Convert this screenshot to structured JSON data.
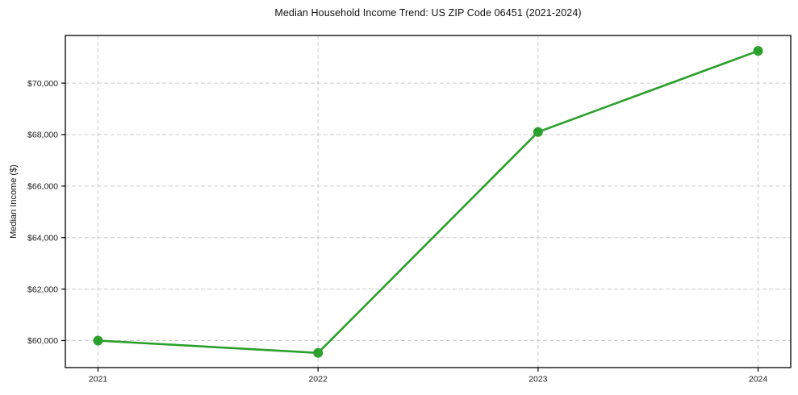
{
  "chart_data": {
    "type": "line",
    "title": "Median Household Income Trend: US ZIP Code 06451 (2021-2024)",
    "xlabel": "",
    "ylabel": "Median Income ($)",
    "categories": [
      "2021",
      "2022",
      "2023",
      "2024"
    ],
    "series": [
      {
        "name": "Median Household Income",
        "values": [
          60000,
          59520,
          68100,
          71250
        ]
      }
    ],
    "ylim": [
      58950,
      71850
    ],
    "yticks": [
      60000,
      62000,
      64000,
      66000,
      68000,
      70000
    ],
    "ytick_labels": [
      "$60,000",
      "$62,000",
      "$64,000",
      "$66,000",
      "$68,000",
      "$70,000"
    ],
    "grid": true,
    "grid_style": "dashed",
    "legend_position": "none",
    "colors": {
      "line": "#2ca02c",
      "marker": "#2ca02c",
      "grid": "#cccccc",
      "spine": "#000000",
      "text": "#1a1a1a",
      "background": "#ffffff"
    }
  }
}
